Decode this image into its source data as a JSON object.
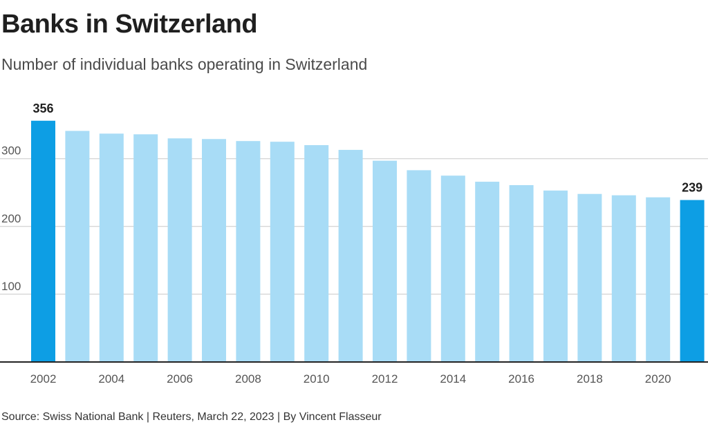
{
  "title": "Banks in Switzerland",
  "subtitle": "Number of individual banks operating in Switzerland",
  "source": "Source: Swiss National Bank | Reuters, March 22, 2023 | By Vincent Flasseur",
  "colors": {
    "bar": "#a8dcf6",
    "highlight": "#0d9ee4",
    "grid": "#c8c8c8",
    "axis": "#222222"
  },
  "chart_data": {
    "type": "bar",
    "categories": [
      "2002",
      "2003",
      "2004",
      "2005",
      "2006",
      "2007",
      "2008",
      "2009",
      "2010",
      "2011",
      "2012",
      "2013",
      "2014",
      "2015",
      "2016",
      "2017",
      "2018",
      "2019",
      "2020",
      "2021"
    ],
    "values": [
      356,
      341,
      337,
      336,
      330,
      329,
      326,
      325,
      320,
      313,
      297,
      283,
      275,
      266,
      261,
      253,
      248,
      246,
      243,
      239
    ],
    "highlighted": [
      "2002",
      "2021"
    ],
    "data_labels": [
      {
        "category": "2002",
        "label": "356"
      },
      {
        "category": "2021",
        "label": "239"
      }
    ],
    "xticks": [
      "2002",
      "2004",
      "2006",
      "2008",
      "2010",
      "2012",
      "2014",
      "2016",
      "2018",
      "2020"
    ],
    "yticks": [
      100,
      200,
      300
    ],
    "ylim": [
      0,
      360
    ],
    "grid": true,
    "title": "Banks in Switzerland",
    "xlabel": "",
    "ylabel": ""
  }
}
